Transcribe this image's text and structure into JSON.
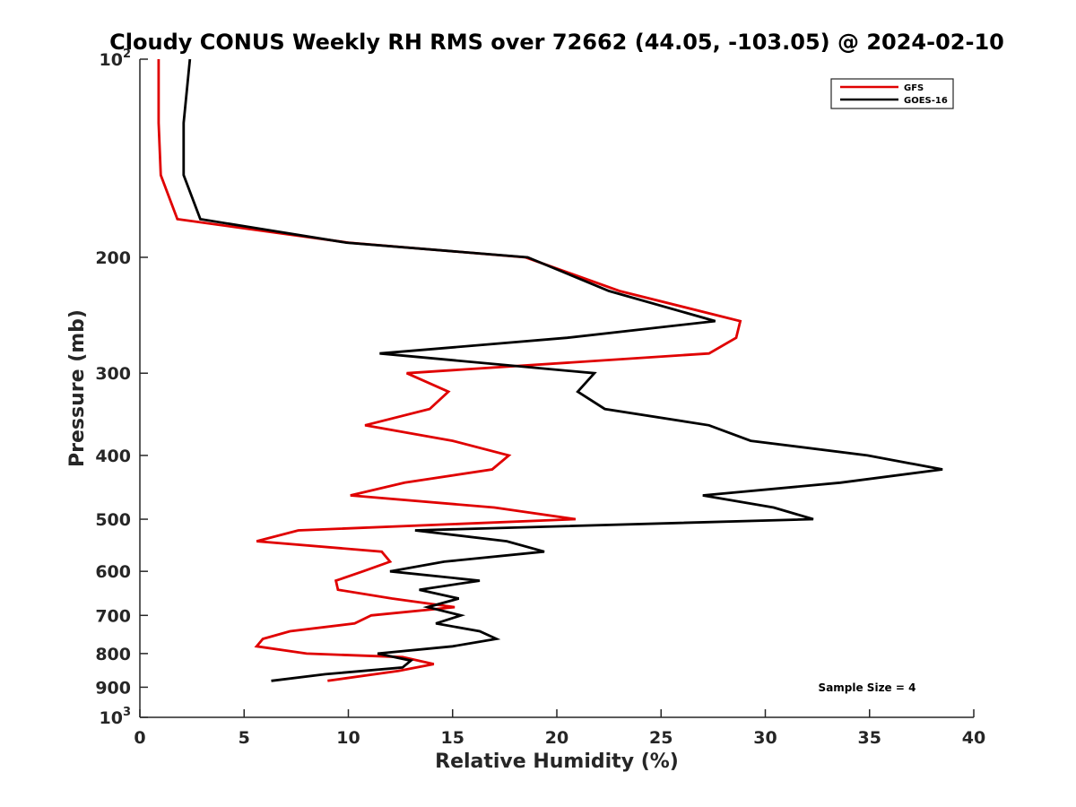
{
  "chart_data": {
    "type": "line",
    "title": "Cloudy CONUS Weekly RH RMS over 72662 (44.05, -103.05) @ 2024-02-10",
    "xlabel": "Relative Humidity (%)",
    "ylabel": "Pressure (mb)",
    "xlim": [
      0,
      40
    ],
    "ylim": [
      100,
      1000
    ],
    "y_scale": "log",
    "y_reversed": true,
    "grid": false,
    "legend_position": "top-right",
    "x_ticks": [
      "0",
      "5",
      "10",
      "15",
      "20",
      "25",
      "30",
      "35",
      "40"
    ],
    "y_ticks": [
      {
        "value": 100,
        "base": "10",
        "exp": "2"
      },
      {
        "value": 200,
        "label": "200"
      },
      {
        "value": 300,
        "label": "300"
      },
      {
        "value": 400,
        "label": "400"
      },
      {
        "value": 500,
        "label": "500"
      },
      {
        "value": 600,
        "label": "600"
      },
      {
        "value": 700,
        "label": "700"
      },
      {
        "value": 800,
        "label": "800"
      },
      {
        "value": 900,
        "label": "900"
      },
      {
        "value": 1000,
        "base": "10",
        "exp": "3"
      }
    ],
    "annotation": "Sample Size = 4",
    "series": [
      {
        "name": "GFS",
        "color": "#e00000",
        "points": [
          [
            0.9,
            100
          ],
          [
            0.9,
            125
          ],
          [
            1.0,
            150
          ],
          [
            1.8,
            175
          ],
          [
            10.0,
            190
          ],
          [
            18.5,
            200
          ],
          [
            23.0,
            225
          ],
          [
            28.8,
            250
          ],
          [
            28.6,
            265
          ],
          [
            27.3,
            280
          ],
          [
            12.8,
            300
          ],
          [
            14.8,
            320
          ],
          [
            13.9,
            340
          ],
          [
            10.8,
            360
          ],
          [
            15.0,
            380
          ],
          [
            17.7,
            400
          ],
          [
            16.9,
            420
          ],
          [
            12.7,
            440
          ],
          [
            10.1,
            460
          ],
          [
            17.0,
            480
          ],
          [
            20.9,
            500
          ],
          [
            7.6,
            520
          ],
          [
            5.6,
            540
          ],
          [
            11.6,
            560
          ],
          [
            12.0,
            580
          ],
          [
            10.7,
            600
          ],
          [
            9.4,
            620
          ],
          [
            9.5,
            640
          ],
          [
            12.1,
            660
          ],
          [
            15.1,
            680
          ],
          [
            11.1,
            700
          ],
          [
            10.3,
            720
          ],
          [
            7.2,
            740
          ],
          [
            5.9,
            760
          ],
          [
            5.6,
            780
          ],
          [
            8.0,
            800
          ],
          [
            12.6,
            810
          ],
          [
            14.1,
            830
          ],
          [
            12.4,
            850
          ],
          [
            9.0,
            880
          ]
        ]
      },
      {
        "name": "GOES-16",
        "color": "#000000",
        "points": [
          [
            2.4,
            100
          ],
          [
            2.1,
            125
          ],
          [
            2.1,
            150
          ],
          [
            2.9,
            175
          ],
          [
            9.9,
            190
          ],
          [
            18.6,
            200
          ],
          [
            22.5,
            225
          ],
          [
            27.6,
            250
          ],
          [
            20.5,
            265
          ],
          [
            11.5,
            280
          ],
          [
            21.8,
            300
          ],
          [
            21.0,
            320
          ],
          [
            22.3,
            340
          ],
          [
            27.3,
            360
          ],
          [
            29.3,
            380
          ],
          [
            34.9,
            400
          ],
          [
            38.5,
            420
          ],
          [
            33.6,
            440
          ],
          [
            27.0,
            460
          ],
          [
            30.4,
            480
          ],
          [
            32.3,
            500
          ],
          [
            13.2,
            520
          ],
          [
            17.6,
            540
          ],
          [
            19.4,
            560
          ],
          [
            14.6,
            580
          ],
          [
            12.0,
            600
          ],
          [
            16.3,
            620
          ],
          [
            13.4,
            640
          ],
          [
            15.3,
            660
          ],
          [
            13.8,
            680
          ],
          [
            15.4,
            700
          ],
          [
            14.2,
            720
          ],
          [
            16.3,
            740
          ],
          [
            17.1,
            760
          ],
          [
            15.0,
            780
          ],
          [
            11.4,
            800
          ],
          [
            13.0,
            820
          ],
          [
            12.6,
            840
          ],
          [
            8.9,
            860
          ],
          [
            6.3,
            880
          ]
        ]
      }
    ]
  }
}
